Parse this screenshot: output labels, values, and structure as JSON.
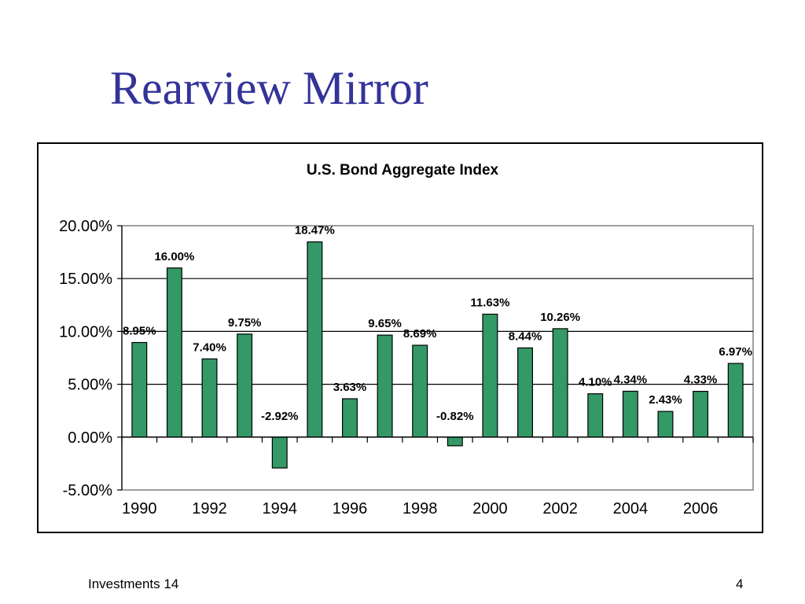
{
  "slide": {
    "title": "Rearview Mirror",
    "footer_left": "Investments 14",
    "page_number": "4"
  },
  "chart_data": {
    "type": "bar",
    "title": "U.S. Bond Aggregate Index",
    "xlabel": "",
    "ylabel": "",
    "x": [
      1990,
      1991,
      1992,
      1993,
      1994,
      1995,
      1996,
      1997,
      1998,
      1999,
      2000,
      2001,
      2002,
      2003,
      2004,
      2005,
      2006,
      2007
    ],
    "values": [
      8.95,
      16.0,
      7.4,
      9.75,
      -2.92,
      18.47,
      3.63,
      9.65,
      8.69,
      -0.82,
      11.63,
      8.44,
      10.26,
      4.1,
      4.34,
      2.43,
      4.33,
      6.97
    ],
    "data_labels": [
      "8.95%",
      "16.00%",
      "7.40%",
      "9.75%",
      "-2.92%",
      "18.47%",
      "3.63%",
      "9.65%",
      "8.69%",
      "-0.82%",
      "11.63%",
      "8.44%",
      "10.26%",
      "4.10%",
      "4.34%",
      "2.43%",
      "4.33%",
      "6.97%"
    ],
    "x_tick_labels": [
      "1990",
      "1992",
      "1994",
      "1996",
      "1998",
      "2000",
      "2002",
      "2004",
      "2006"
    ],
    "y_tick_values": [
      20,
      15,
      10,
      5,
      0,
      -5
    ],
    "y_tick_labels": [
      "20.00%",
      "15.00%",
      "10.00%",
      "5.00%",
      "0.00%",
      "-5.00%"
    ],
    "ylim": [
      -5,
      20
    ],
    "grid": true,
    "legend": "none",
    "bar_color": "#339966"
  }
}
